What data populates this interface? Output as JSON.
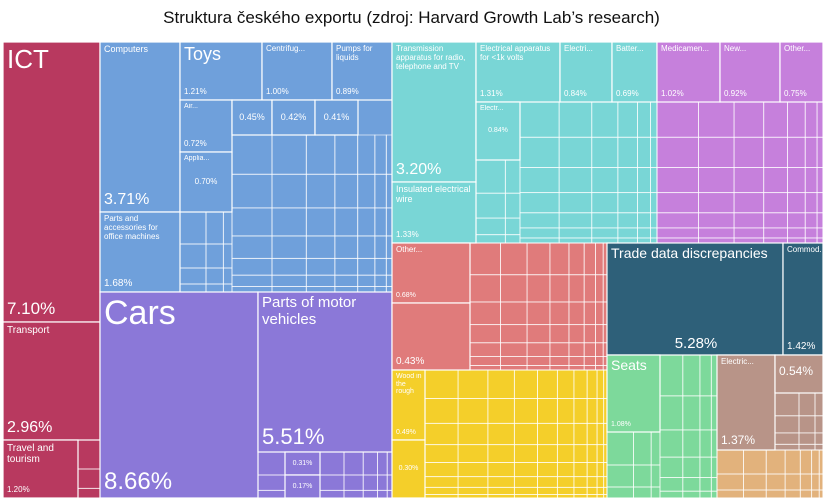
{
  "chart_data": {
    "type": "treemap",
    "title": "Struktura českého exportu (zdroj: Harvard Growth Lab’s research)",
    "tiles": [
      {
        "name": "ICT",
        "value": 7.1,
        "value_label": "7.10%",
        "color": "#b8395f"
      },
      {
        "name": "Transport",
        "value": 2.96,
        "value_label": "2.96%",
        "color": "#b8395f"
      },
      {
        "name": "Travel and tourism",
        "value": 1.2,
        "value_label": "1.20%",
        "color": "#b8395f"
      },
      {
        "name": "Computers",
        "value": 3.71,
        "value_label": "3.71%",
        "color": "#6fa0db"
      },
      {
        "name": "Parts and accessories for office machines",
        "value": 1.68,
        "value_label": "1.68%",
        "color": "#6fa0db"
      },
      {
        "name": "Toys",
        "value": 1.21,
        "value_label": "1.21%",
        "color": "#6fa0db"
      },
      {
        "name": "Centrifug...",
        "value": 1.0,
        "value_label": "1.00%",
        "color": "#6fa0db"
      },
      {
        "name": "Pumps for liquids",
        "value": 0.89,
        "value_label": "0.89%",
        "color": "#6fa0db"
      },
      {
        "name": "Air...",
        "value": 0.72,
        "value_label": "0.72%",
        "color": "#6fa0db"
      },
      {
        "name": "Applia...",
        "value": 0.7,
        "value_label": "0.70%",
        "color": "#6fa0db"
      },
      {
        "value": 0.45,
        "value_label": "0.45%",
        "color": "#6fa0db"
      },
      {
        "value": 0.42,
        "value_label": "0.42%",
        "color": "#6fa0db"
      },
      {
        "value": 0.41,
        "value_label": "0.41%",
        "color": "#6fa0db"
      },
      {
        "name": "Cars",
        "value": 8.66,
        "value_label": "8.66%",
        "color": "#8b78d8"
      },
      {
        "name": "Parts of motor vehicles",
        "value": 5.51,
        "value_label": "5.51%",
        "color": "#8b78d8"
      },
      {
        "value": 0.31,
        "value_label": "0.31%",
        "color": "#8b78d8"
      },
      {
        "value": 0.17,
        "value_label": "0.17%",
        "color": "#8b78d8"
      },
      {
        "name": "Transmission apparatus for radio, telephone and TV",
        "value": 3.2,
        "value_label": "3.20%",
        "color": "#79d6d6"
      },
      {
        "name": "Insulated electrical wire",
        "value": 1.33,
        "value_label": "1.33%",
        "color": "#79d6d6"
      },
      {
        "name": "Electrical apparatus for <1k volts",
        "value": 1.31,
        "value_label": "1.31%",
        "color": "#79d6d6"
      },
      {
        "name": "Electri...",
        "value": 0.84,
        "value_label": "0.84%",
        "color": "#79d6d6"
      },
      {
        "name": "Batter...",
        "value": 0.69,
        "value_label": "0.69%",
        "color": "#79d6d6"
      },
      {
        "name": "Electr...",
        "value": 0.84,
        "value_label": "0.84%",
        "color": "#79d6d6"
      },
      {
        "name": "Medicamen...",
        "value": 1.02,
        "value_label": "1.02%",
        "color": "#c680dc"
      },
      {
        "name": "New...",
        "value": 0.92,
        "value_label": "0.92%",
        "color": "#c680dc"
      },
      {
        "name": "Other...",
        "value": 0.75,
        "value_label": "0.75%",
        "color": "#c680dc"
      },
      {
        "name": "Other...",
        "value": 0.68,
        "value_label": "0.68%",
        "color": "#e07b7b"
      },
      {
        "value": 0.43,
        "value_label": "0.43%",
        "color": "#e07b7b"
      },
      {
        "name": "Trade data discrepancies",
        "value": 5.28,
        "value_label": "5.28%",
        "color": "#2e6079"
      },
      {
        "name": "Commod...",
        "value": 1.42,
        "value_label": "1.42%",
        "color": "#2e6079"
      },
      {
        "name": "Wood in the rough",
        "value": 0.49,
        "value_label": "0.49%",
        "color": "#f4cf2a"
      },
      {
        "value": 0.3,
        "value_label": "0.30%",
        "color": "#f4cf2a"
      },
      {
        "name": "Seats",
        "value": 1.08,
        "value_label": "1.08%",
        "color": "#7dd99b"
      },
      {
        "name": "Electric...",
        "value": 1.37,
        "value_label": "1.37%",
        "color": "#b89488"
      },
      {
        "value": 0.54,
        "value_label": "0.54%",
        "color": "#b89488"
      }
    ]
  }
}
